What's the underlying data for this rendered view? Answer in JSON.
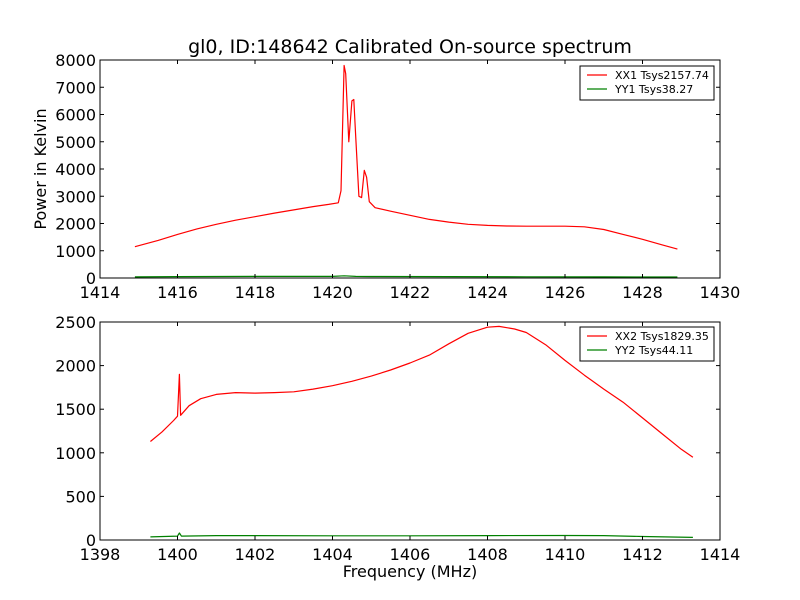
{
  "figure": {
    "title": "gl0, ID:148642 Calibrated On-source spectrum"
  },
  "chart_data": [
    {
      "type": "line",
      "title": "gl0, ID:148642 Calibrated On-source spectrum",
      "xlabel": "",
      "ylabel": "Power in Kelvin",
      "xlim": [
        1414,
        1430
      ],
      "ylim": [
        0,
        8000
      ],
      "xticks": [
        1414,
        1416,
        1418,
        1420,
        1422,
        1424,
        1426,
        1428,
        1430
      ],
      "yticks": [
        0,
        1000,
        2000,
        3000,
        4000,
        5000,
        6000,
        7000,
        8000
      ],
      "legend_position": "top-right",
      "grid": false,
      "series": [
        {
          "name": "XX1 Tsys2157.74",
          "color": "#ff0000",
          "points": [
            [
              1414.9,
              1150
            ],
            [
              1415.5,
              1380
            ],
            [
              1416,
              1600
            ],
            [
              1416.5,
              1800
            ],
            [
              1417,
              1970
            ],
            [
              1417.5,
              2120
            ],
            [
              1418,
              2250
            ],
            [
              1418.5,
              2380
            ],
            [
              1419,
              2500
            ],
            [
              1419.5,
              2620
            ],
            [
              1419.9,
              2700
            ],
            [
              1420.15,
              2760
            ],
            [
              1420.22,
              3200
            ],
            [
              1420.3,
              7800
            ],
            [
              1420.34,
              7500
            ],
            [
              1420.42,
              5000
            ],
            [
              1420.5,
              6500
            ],
            [
              1420.55,
              6550
            ],
            [
              1420.6,
              5200
            ],
            [
              1420.68,
              3000
            ],
            [
              1420.75,
              2950
            ],
            [
              1420.82,
              3950
            ],
            [
              1420.88,
              3700
            ],
            [
              1420.95,
              2800
            ],
            [
              1421.1,
              2580
            ],
            [
              1421.5,
              2450
            ],
            [
              1422,
              2300
            ],
            [
              1422.5,
              2150
            ],
            [
              1423,
              2050
            ],
            [
              1423.5,
              1970
            ],
            [
              1424,
              1930
            ],
            [
              1424.5,
              1910
            ],
            [
              1425,
              1900
            ],
            [
              1425.5,
              1900
            ],
            [
              1426,
              1900
            ],
            [
              1426.5,
              1880
            ],
            [
              1427,
              1780
            ],
            [
              1427.5,
              1600
            ],
            [
              1428,
              1420
            ],
            [
              1428.5,
              1220
            ],
            [
              1428.9,
              1060
            ]
          ]
        },
        {
          "name": "YY1 Tsys38.27",
          "color": "#008000",
          "points": [
            [
              1414.9,
              40
            ],
            [
              1416,
              50
            ],
            [
              1417,
              55
            ],
            [
              1418,
              58
            ],
            [
              1419,
              60
            ],
            [
              1420,
              60
            ],
            [
              1420.3,
              80
            ],
            [
              1420.6,
              60
            ],
            [
              1421,
              55
            ],
            [
              1423,
              50
            ],
            [
              1425,
              45
            ],
            [
              1427,
              40
            ],
            [
              1428.9,
              35
            ]
          ]
        }
      ]
    },
    {
      "type": "line",
      "title": "",
      "xlabel": "Frequency (MHz)",
      "ylabel": "",
      "xlim": [
        1398,
        1414
      ],
      "ylim": [
        0,
        2500
      ],
      "xticks": [
        1398,
        1400,
        1402,
        1404,
        1406,
        1408,
        1410,
        1412,
        1414
      ],
      "yticks": [
        0,
        500,
        1000,
        1500,
        2000,
        2500
      ],
      "legend_position": "top-right",
      "grid": false,
      "series": [
        {
          "name": "XX2 Tsys1829.35",
          "color": "#ff0000",
          "points": [
            [
              1399.3,
              1130
            ],
            [
              1399.6,
              1240
            ],
            [
              1399.9,
              1370
            ],
            [
              1400.0,
              1420
            ],
            [
              1400.05,
              1900
            ],
            [
              1400.08,
              1430
            ],
            [
              1400.3,
              1540
            ],
            [
              1400.6,
              1620
            ],
            [
              1401,
              1670
            ],
            [
              1401.5,
              1690
            ],
            [
              1402,
              1685
            ],
            [
              1402.5,
              1690
            ],
            [
              1403,
              1700
            ],
            [
              1403.5,
              1730
            ],
            [
              1404,
              1770
            ],
            [
              1404.5,
              1820
            ],
            [
              1405,
              1880
            ],
            [
              1405.5,
              1950
            ],
            [
              1406,
              2030
            ],
            [
              1406.5,
              2120
            ],
            [
              1407,
              2250
            ],
            [
              1407.5,
              2370
            ],
            [
              1408,
              2440
            ],
            [
              1408.3,
              2450
            ],
            [
              1408.7,
              2420
            ],
            [
              1409,
              2380
            ],
            [
              1409.5,
              2240
            ],
            [
              1410,
              2060
            ],
            [
              1410.5,
              1890
            ],
            [
              1411,
              1730
            ],
            [
              1411.5,
              1580
            ],
            [
              1412,
              1400
            ],
            [
              1412.5,
              1220
            ],
            [
              1413,
              1040
            ],
            [
              1413.3,
              950
            ]
          ]
        },
        {
          "name": "YY2 Tsys44.11",
          "color": "#008000",
          "points": [
            [
              1399.3,
              35
            ],
            [
              1400,
              45
            ],
            [
              1400.05,
              80
            ],
            [
              1400.1,
              45
            ],
            [
              1401,
              50
            ],
            [
              1402,
              50
            ],
            [
              1404,
              48
            ],
            [
              1406,
              48
            ],
            [
              1408,
              50
            ],
            [
              1410,
              52
            ],
            [
              1411,
              50
            ],
            [
              1412,
              40
            ],
            [
              1413.3,
              30
            ]
          ]
        }
      ]
    }
  ]
}
